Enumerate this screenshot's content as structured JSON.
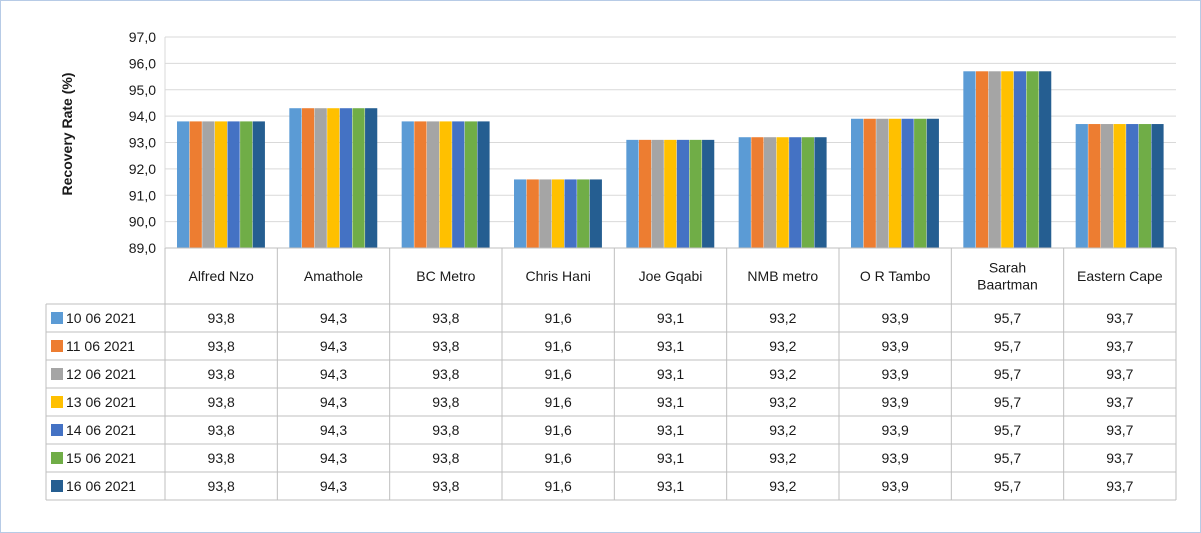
{
  "chart_data": {
    "type": "bar",
    "ylabel": "Recovery Rate (%)",
    "ylim": [
      89.0,
      97.0
    ],
    "ytick_step": 1.0,
    "yticks": [
      "89,0",
      "90,0",
      "91,0",
      "92,0",
      "93,0",
      "94,0",
      "95,0",
      "96,0",
      "97,0"
    ],
    "grid": true,
    "legend": "data-table",
    "categories": [
      "Alfred Nzo",
      "Amathole",
      "BC Metro",
      "Chris Hani",
      "Joe Gqabi",
      "NMB metro",
      "O R Tambo",
      "Sarah Baartman",
      "Eastern Cape"
    ],
    "category_display": [
      [
        "Alfred Nzo"
      ],
      [
        "Amathole"
      ],
      [
        "BC Metro"
      ],
      [
        "Chris Hani"
      ],
      [
        "Joe Gqabi"
      ],
      [
        "NMB metro"
      ],
      [
        "O R Tambo"
      ],
      [
        "Sarah",
        "Baartman"
      ],
      [
        "Eastern Cape"
      ]
    ],
    "series": [
      {
        "name": "10 06 2021",
        "color": "#5b9bd5",
        "values": [
          93.8,
          94.3,
          93.8,
          91.6,
          93.1,
          93.2,
          93.9,
          95.7,
          93.7
        ],
        "labels": [
          "93,8",
          "94,3",
          "93,8",
          "91,6",
          "93,1",
          "93,2",
          "93,9",
          "95,7",
          "93,7"
        ]
      },
      {
        "name": "11 06 2021",
        "color": "#ed7d31",
        "values": [
          93.8,
          94.3,
          93.8,
          91.6,
          93.1,
          93.2,
          93.9,
          95.7,
          93.7
        ],
        "labels": [
          "93,8",
          "94,3",
          "93,8",
          "91,6",
          "93,1",
          "93,2",
          "93,9",
          "95,7",
          "93,7"
        ]
      },
      {
        "name": "12 06 2021",
        "color": "#a5a5a5",
        "values": [
          93.8,
          94.3,
          93.8,
          91.6,
          93.1,
          93.2,
          93.9,
          95.7,
          93.7
        ],
        "labels": [
          "93,8",
          "94,3",
          "93,8",
          "91,6",
          "93,1",
          "93,2",
          "93,9",
          "95,7",
          "93,7"
        ]
      },
      {
        "name": "13 06 2021",
        "color": "#ffc000",
        "values": [
          93.8,
          94.3,
          93.8,
          91.6,
          93.1,
          93.2,
          93.9,
          95.7,
          93.7
        ],
        "labels": [
          "93,8",
          "94,3",
          "93,8",
          "91,6",
          "93,1",
          "93,2",
          "93,9",
          "95,7",
          "93,7"
        ]
      },
      {
        "name": "14 06 2021",
        "color": "#4472c4",
        "values": [
          93.8,
          94.3,
          93.8,
          91.6,
          93.1,
          93.2,
          93.9,
          95.7,
          93.7
        ],
        "labels": [
          "93,8",
          "94,3",
          "93,8",
          "91,6",
          "93,1",
          "93,2",
          "93,9",
          "95,7",
          "93,7"
        ]
      },
      {
        "name": "15 06 2021",
        "color": "#70ad47",
        "values": [
          93.8,
          94.3,
          93.8,
          91.6,
          93.1,
          93.2,
          93.9,
          95.7,
          93.7
        ],
        "labels": [
          "93,8",
          "94,3",
          "93,8",
          "91,6",
          "93,1",
          "93,2",
          "93,9",
          "95,7",
          "93,7"
        ]
      },
      {
        "name": "16 06 2021",
        "color": "#255e91",
        "values": [
          93.8,
          94.3,
          93.8,
          91.6,
          93.1,
          93.2,
          93.9,
          95.7,
          93.7
        ],
        "labels": [
          "93,8",
          "94,3",
          "93,8",
          "91,6",
          "93,1",
          "93,2",
          "93,9",
          "95,7",
          "93,7"
        ]
      }
    ]
  }
}
